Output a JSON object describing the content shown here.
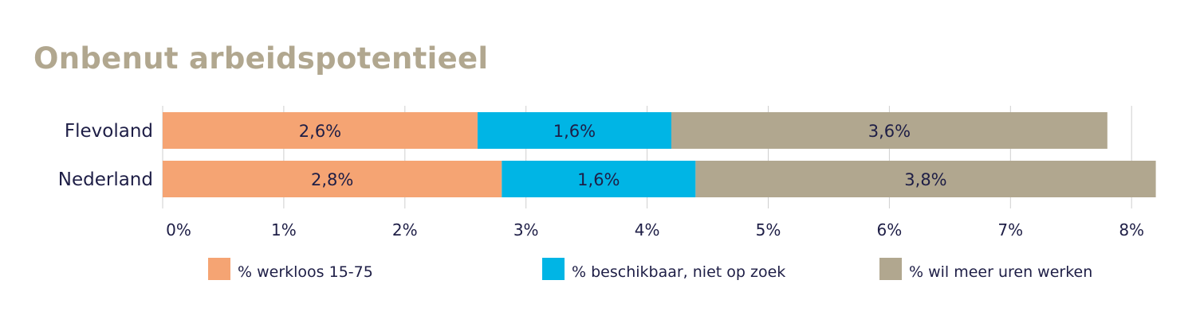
{
  "chart_data": {
    "type": "bar",
    "orientation": "horizontal",
    "stacked": true,
    "title": "Onbenut arbeidspotentieel",
    "categories": [
      "Flevoland",
      "Nederland"
    ],
    "series": [
      {
        "name": "% werkloos 15-75",
        "values": [
          2.6,
          2.8
        ],
        "labels": [
          "2,6%",
          "2,8%"
        ],
        "color": "#f5a473"
      },
      {
        "name": "% beschikbaar, niet op zoek",
        "values": [
          1.6,
          1.6
        ],
        "labels": [
          "1,6%",
          "1,6%"
        ],
        "color": "#00b5e5"
      },
      {
        "name": "% wil meer uren werken",
        "values": [
          3.6,
          3.8
        ],
        "labels": [
          "3,6%",
          "3,8%"
        ],
        "color": "#b1a78f"
      }
    ],
    "xlim": [
      0,
      8
    ],
    "xticks": [
      0,
      1,
      2,
      3,
      4,
      5,
      6,
      7,
      8
    ],
    "xtick_labels": [
      "0%",
      "1%",
      "2%",
      "3%",
      "4%",
      "5%",
      "6%",
      "7%",
      "8%"
    ],
    "grid": true,
    "legend_position": "bottom"
  }
}
